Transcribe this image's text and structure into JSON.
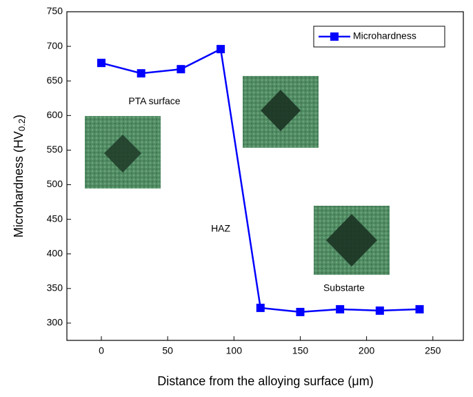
{
  "chart_data": {
    "type": "line",
    "xlabel": "Distance from the alloying surface (μm)",
    "ylabel": {
      "main": "Microhardness (HV",
      "sub": "0.2",
      "end": ")"
    },
    "x": [
      0,
      30,
      60,
      90,
      120,
      150,
      180,
      210,
      240
    ],
    "series": [
      {
        "name": "Microhardness",
        "color": "#0000ff",
        "values": [
          676,
          661,
          667,
          696,
          322,
          316,
          320,
          318,
          320
        ]
      }
    ],
    "xlim": [
      -26,
      273
    ],
    "xticks": [
      0,
      50,
      100,
      150,
      200,
      250
    ],
    "ylim": [
      275,
      750
    ],
    "yticks": [
      300,
      350,
      400,
      450,
      500,
      550,
      600,
      650,
      700,
      750
    ],
    "legend": "upper right",
    "annotations": [
      {
        "text": "PTA surface",
        "x": 40,
        "y": 620
      },
      {
        "text": "HAZ",
        "x": 90,
        "y": 436
      },
      {
        "text": "Substarte",
        "x": 183,
        "y": 350
      }
    ]
  }
}
